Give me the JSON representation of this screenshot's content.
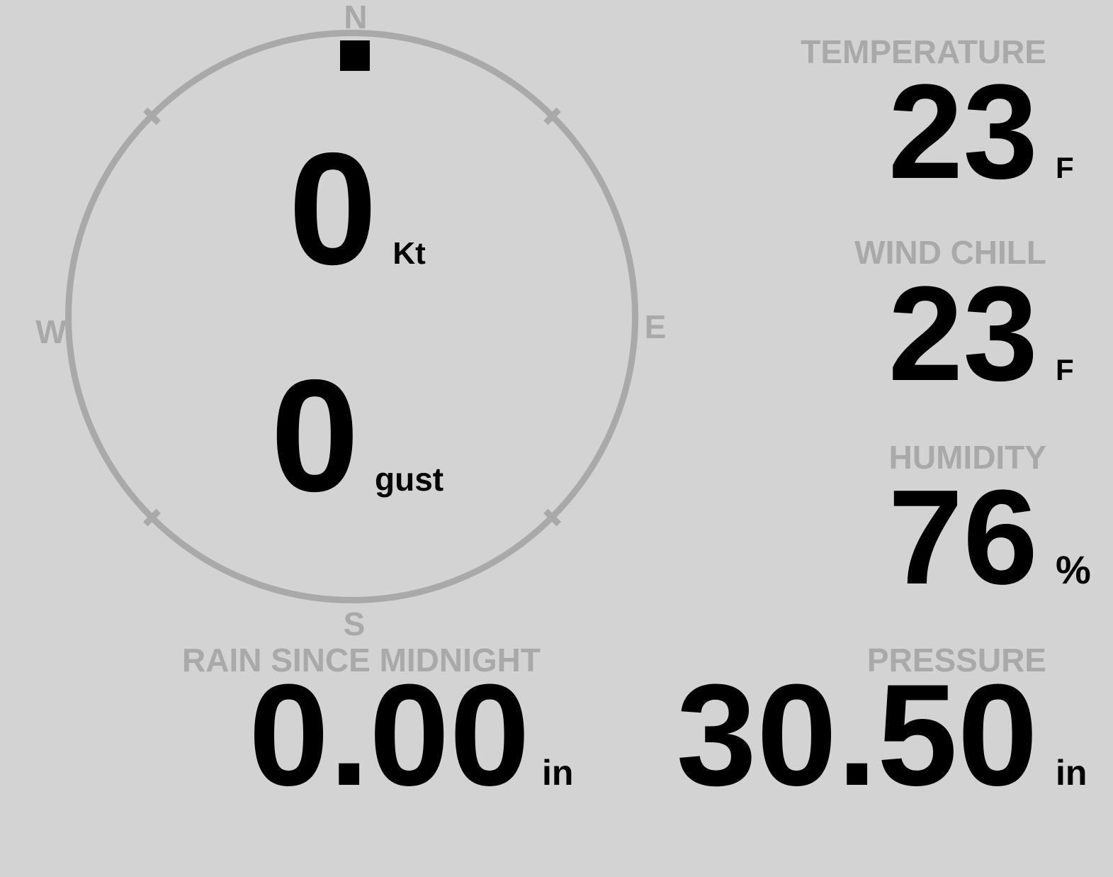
{
  "colors": {
    "background": "#d3d3d3",
    "muted_text": "#a9a9a9",
    "value_text": "#000000",
    "marker": "#000000"
  },
  "compass": {
    "cardinals": {
      "north": "N",
      "east": "E",
      "south": "S",
      "west": "W"
    },
    "direction_marker_position": "north",
    "wind_speed": {
      "value": "0",
      "unit": "Kt"
    },
    "wind_gust": {
      "value": "0",
      "unit": "gust"
    }
  },
  "metrics": {
    "temperature": {
      "label": "TEMPERATURE",
      "value": "23",
      "unit": "F"
    },
    "wind_chill": {
      "label": "WIND CHILL",
      "value": "23",
      "unit": "F"
    },
    "humidity": {
      "label": "HUMIDITY",
      "value": "76",
      "unit": "%"
    },
    "rain_since_midnight": {
      "label": "RAIN SINCE MIDNIGHT",
      "value": "0.00",
      "unit": "in"
    },
    "pressure": {
      "label": "PRESSURE",
      "value": "30.50",
      "unit": "in"
    }
  }
}
